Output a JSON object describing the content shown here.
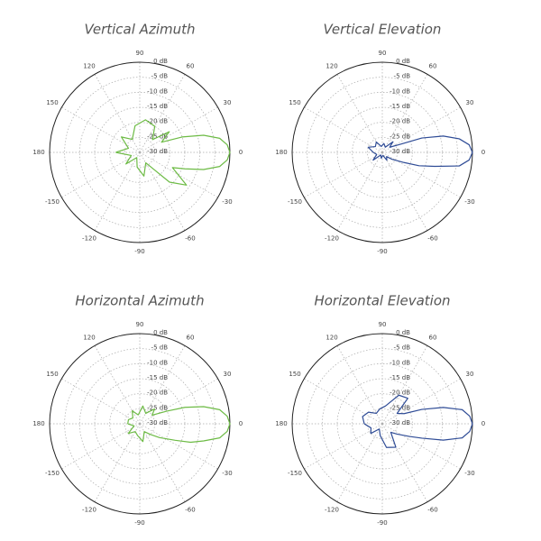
{
  "chart_data": [
    {
      "type": "polar",
      "title": "Vertical Azimuth",
      "color": "#6dbb45",
      "theta": [
        -180,
        -160,
        -140,
        -120,
        -100,
        -80,
        -60,
        -45,
        -35,
        -25,
        -20,
        -15,
        -10,
        -5,
        0,
        5,
        10,
        15,
        20,
        25,
        35,
        45,
        60,
        80,
        100,
        120,
        140,
        160,
        180
      ],
      "values": [
        -22,
        -27,
        -24,
        -28,
        -25,
        -22,
        -26,
        -16,
        -11,
        -18,
        -14,
        -8,
        -3,
        -0.8,
        0,
        -0.8,
        -3,
        -8,
        -15,
        -22,
        -18,
        -24,
        -20,
        -19,
        -21,
        -25,
        -22,
        -26,
        -22
      ],
      "rlim": [
        -30,
        0
      ],
      "rticks": [
        {
          "value": 0,
          "label": "0 dB"
        },
        {
          "value": -5,
          "label": "-5 dB"
        },
        {
          "value": -10,
          "label": "-10 dB"
        },
        {
          "value": -15,
          "label": "-15 dB"
        },
        {
          "value": -20,
          "label": "-20 dB"
        },
        {
          "value": -25,
          "label": "-25 dB"
        },
        {
          "value": -30,
          "label": "-30 dB"
        }
      ],
      "thetaticks": [
        0,
        30,
        60,
        90,
        120,
        150,
        180,
        -150,
        -120,
        -90,
        -60,
        -30
      ]
    },
    {
      "type": "polar",
      "title": "Vertical Elevation",
      "color": "#2f4c96",
      "theta": [
        -180,
        -160,
        -140,
        -120,
        -100,
        -80,
        -60,
        -45,
        -35,
        -25,
        -20,
        -15,
        -10,
        -5,
        0,
        5,
        10,
        15,
        20,
        25,
        35,
        45,
        60,
        80,
        100,
        120,
        140,
        160,
        180
      ],
      "values": [
        -27,
        -28,
        -26,
        -29,
        -28,
        -29,
        -27,
        -28,
        -26,
        -22,
        -17,
        -12,
        -4,
        -1,
        0,
        -1,
        -4,
        -9,
        -16,
        -24,
        -27,
        -25,
        -28,
        -27,
        -28,
        -26,
        -27,
        -25,
        -27
      ],
      "rlim": [
        -30,
        0
      ],
      "rticks": [
        {
          "value": 0,
          "label": "0 dB"
        },
        {
          "value": -5,
          "label": "-5 dB"
        },
        {
          "value": -10,
          "label": "-10 dB"
        },
        {
          "value": -15,
          "label": "-15 dB"
        },
        {
          "value": -20,
          "label": "-20 dB"
        },
        {
          "value": -25,
          "label": "-25 dB"
        },
        {
          "value": -30,
          "label": "-30 dB"
        }
      ],
      "thetaticks": [
        0,
        30,
        60,
        90,
        120,
        150,
        180,
        -150,
        -120,
        -90,
        -60,
        -30
      ]
    },
    {
      "type": "polar",
      "title": "Horizontal Azimuth",
      "color": "#6dbb45",
      "theta": [
        -180,
        -160,
        -140,
        -120,
        -100,
        -80,
        -60,
        -45,
        -35,
        -25,
        -20,
        -15,
        -10,
        -5,
        0,
        5,
        10,
        15,
        20,
        25,
        35,
        45,
        60,
        80,
        100,
        120,
        140,
        160,
        180
      ],
      "values": [
        -26,
        -28,
        -25,
        -27,
        -26,
        -24,
        -27,
        -25,
        -22,
        -17,
        -12,
        -8,
        -3,
        -0.8,
        0,
        -0.8,
        -3,
        -8,
        -14,
        -20,
        -25,
        -23,
        -26,
        -24,
        -27,
        -25,
        -27,
        -26,
        -26
      ],
      "rlim": [
        -30,
        0
      ],
      "rticks": [
        {
          "value": 0,
          "label": "0 dB"
        },
        {
          "value": -5,
          "label": "-5 dB"
        },
        {
          "value": -10,
          "label": "-10 dB"
        },
        {
          "value": -15,
          "label": "-15 dB"
        },
        {
          "value": -20,
          "label": "-20 dB"
        },
        {
          "value": -25,
          "label": "-25 dB"
        },
        {
          "value": -30,
          "label": "-30 dB"
        }
      ],
      "thetaticks": [
        0,
        30,
        60,
        90,
        120,
        150,
        180,
        -150,
        -120,
        -90,
        -60,
        -30
      ]
    },
    {
      "type": "polar",
      "title": "Horizontal Elevation",
      "color": "#2f4c96",
      "theta": [
        -180,
        -160,
        -140,
        -120,
        -100,
        -80,
        -60,
        -45,
        -35,
        -25,
        -20,
        -15,
        -10,
        -5,
        0,
        5,
        10,
        15,
        20,
        25,
        35,
        45,
        60,
        80,
        100,
        120,
        140,
        160,
        180
      ],
      "values": [
        -24,
        -26,
        -25,
        -28,
        -26,
        -22,
        -21,
        -26,
        -24,
        -20,
        -16,
        -9,
        -3,
        -0.8,
        0,
        -0.8,
        -3,
        -9,
        -16,
        -22,
        -24,
        -18,
        -19,
        -24,
        -25,
        -26,
        -24,
        -23,
        -24
      ],
      "rlim": [
        -30,
        0
      ],
      "rticks": [
        {
          "value": 0,
          "label": "0 dB"
        },
        {
          "value": -5,
          "label": "-5 dB"
        },
        {
          "value": -10,
          "label": "-10 dB"
        },
        {
          "value": -15,
          "label": "-15 dB"
        },
        {
          "value": -20,
          "label": "-20 dB"
        },
        {
          "value": -25,
          "label": "-25 dB"
        },
        {
          "value": -30,
          "label": "-30 dB"
        }
      ],
      "thetaticks": [
        0,
        30,
        60,
        90,
        120,
        150,
        180,
        -150,
        -120,
        -90,
        -60,
        -30
      ]
    }
  ]
}
